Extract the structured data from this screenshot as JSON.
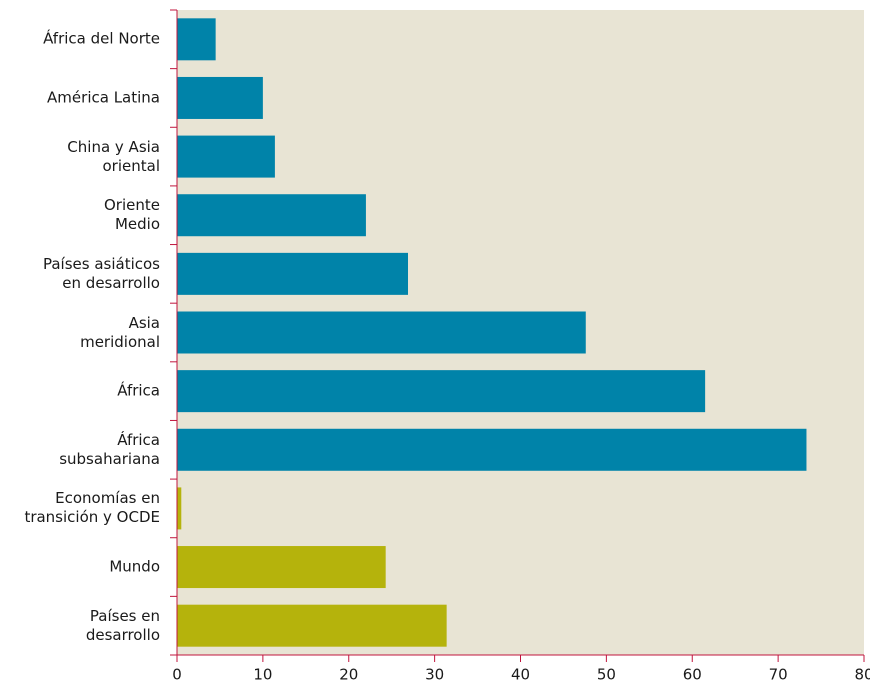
{
  "chart_data": {
    "type": "bar",
    "categories": [
      "África del Norte",
      "América Latina",
      "China y Asia\noriental",
      "Oriente\nMedio",
      "Países asiáticos\nen desarrollo",
      "Asia\nmeridional",
      "África",
      "África\nsubsahariana",
      "Economías en\ntransición y OCDE",
      "Mundo",
      "Países en\ndesarrollo"
    ],
    "values": [
      4.5,
      10.0,
      11.4,
      22.0,
      26.9,
      47.6,
      61.5,
      73.3,
      0.5,
      24.3,
      31.4
    ],
    "colors": [
      "#0083a9",
      "#0083a9",
      "#0083a9",
      "#0083a9",
      "#0083a9",
      "#0083a9",
      "#0083a9",
      "#0083a9",
      "#b5b30c",
      "#b5b30c",
      "#b5b30c"
    ],
    "xlim": [
      0,
      80
    ],
    "xticks": [
      0,
      10,
      20,
      30,
      40,
      50,
      60,
      70,
      80
    ]
  }
}
